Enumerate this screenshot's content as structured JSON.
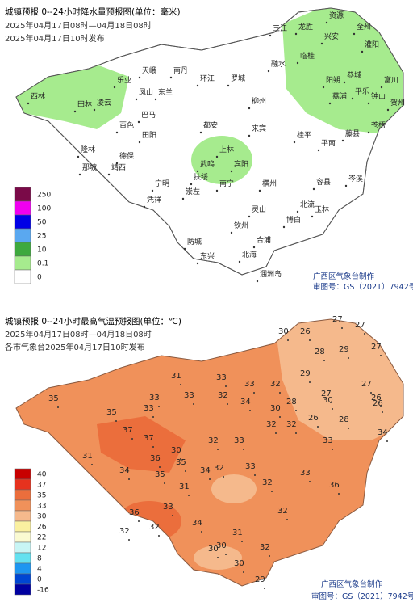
{
  "precip_map": {
    "title": "城镇预报 0--24小时降水量预报图(单位：毫米)",
    "period": "2025年04月17日08时—04月18日08时",
    "issued": "2025年04月17日10时发布",
    "places": [
      "西林",
      "乐业",
      "田林",
      "凌云",
      "天峨",
      "南丹",
      "凤山",
      "东兰",
      "巴马",
      "环江",
      "罗城",
      "融水",
      "三江",
      "龙胜",
      "资源",
      "全州",
      "兴安",
      "灌阳",
      "临桂",
      "阳朔",
      "恭城",
      "荔浦",
      "平乐",
      "富川",
      "钟山",
      "贺州",
      "百色",
      "田阳",
      "德保",
      "靖西",
      "那坡",
      "隆林",
      "都安",
      "上林",
      "武鸣",
      "宾阳",
      "南宁",
      "横州",
      "来宾",
      "柳州",
      "桂平",
      "平南",
      "藤县",
      "苍梧",
      "岑溪",
      "容县",
      "北流",
      "玉林",
      "博白",
      "灵山",
      "钦州",
      "防城",
      "东兴",
      "北海",
      "合浦",
      "涠洲岛",
      "凭祥",
      "宁明",
      "崇左",
      "扶绥"
    ],
    "legend": [
      {
        "label": 250,
        "color": "#7a0a48"
      },
      {
        "label": 100,
        "color": "#f000f0"
      },
      {
        "label": 50,
        "color": "#0000e6"
      },
      {
        "label": 25,
        "color": "#5aa8f0"
      },
      {
        "label": 10,
        "color": "#3ea93e"
      },
      {
        "label": 0.1,
        "color": "#a6eb8e"
      },
      {
        "label": 0,
        "color": "#ffffff"
      }
    ],
    "credit": "广西区气象台制作",
    "approval": "审图号：GS（2021）7942号"
  },
  "temp_map": {
    "title": "城镇预报 0--24小时最高气温预报图(单位：℃)",
    "period": "2025年04月17日08时—04月18日08时",
    "issued": "各市气象台2025年04月17日10时发布",
    "temps": [
      30,
      26,
      27,
      27,
      28,
      29,
      29,
      27,
      31,
      33,
      33,
      32,
      28,
      30,
      27,
      35,
      33,
      33,
      32,
      30,
      26,
      27,
      26,
      35,
      33,
      34,
      32,
      32,
      28,
      26,
      34,
      37,
      37,
      36,
      34,
      30,
      32,
      33,
      33,
      31,
      34,
      35,
      35,
      31,
      32,
      33,
      32,
      33,
      36,
      36,
      33,
      32,
      32,
      34,
      31,
      30,
      32,
      30,
      32,
      29,
      30
    ],
    "legend": [
      {
        "label": 40,
        "color": "#c80000"
      },
      {
        "label": 37,
        "color": "#e6321e"
      },
      {
        "label": 35,
        "color": "#eb6e3c"
      },
      {
        "label": 33,
        "color": "#f0915a"
      },
      {
        "label": 30,
        "color": "#f5b98c"
      },
      {
        "label": 26,
        "color": "#faf0a0"
      },
      {
        "label": 22,
        "color": "#fafad2"
      },
      {
        "label": 12,
        "color": "#c8f5f5"
      },
      {
        "label": 8,
        "color": "#64e1f0"
      },
      {
        "label": 4,
        "color": "#1e96f0"
      },
      {
        "label": 0,
        "color": "#0046d2"
      },
      {
        "label": -16,
        "color": "#0000a0"
      }
    ],
    "credit": "广西区气象台制作",
    "approval": "审图号：GS（2021）7942号"
  }
}
